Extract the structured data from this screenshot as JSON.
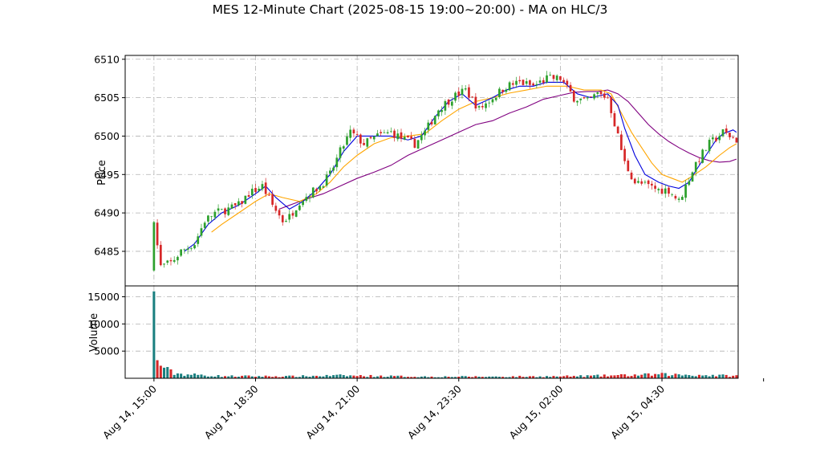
{
  "chart_data": {
    "type": "candlestick",
    "title": "MES 12-Minute Chart (2025-08-15 19:00~20:00) - MA on HLC/3",
    "price_panel": {
      "ylabel": "Price",
      "ylim": [
        6480.5,
        6510.5
      ],
      "yticks": [
        6485,
        6490,
        6495,
        6500,
        6505,
        6510
      ],
      "grid": true
    },
    "volume_panel": {
      "ylabel": "Volume",
      "ylim": [
        0,
        17000
      ],
      "yticks": [
        5000,
        10000,
        15000
      ],
      "grid": true
    },
    "xaxis": {
      "range": [
        -8.5,
        172.5
      ],
      "ticks": [
        {
          "i": 0,
          "label": "Aug 14, 15:00"
        },
        {
          "i": 30,
          "label": "Aug 14, 18:30"
        },
        {
          "i": 60,
          "label": "Aug 14, 21:00"
        },
        {
          "i": 90,
          "label": "Aug 14, 23:30"
        },
        {
          "i": 120,
          "label": "Aug 15, 02:00"
        },
        {
          "i": 150,
          "label": "Aug 15, 04:30"
        },
        {
          "i": 180,
          "label": ""
        }
      ]
    },
    "colors": {
      "up": "#2ca02c",
      "down": "#d62728",
      "vol_up": "#1a7f7f",
      "vol_down": "#d62728",
      "ma_fast": "#0000dd",
      "ma_mid": "#ffa500",
      "ma_slow": "#800080",
      "grid": "#b0b0b0"
    },
    "close_anchors": [
      [
        0,
        6488.5
      ],
      [
        2,
        6483
      ],
      [
        5,
        6483.5
      ],
      [
        8,
        6485
      ],
      [
        12,
        6486
      ],
      [
        15,
        6489
      ],
      [
        18,
        6490
      ],
      [
        22,
        6490.5
      ],
      [
        25,
        6491
      ],
      [
        28,
        6492.5
      ],
      [
        32,
        6493.5
      ],
      [
        35,
        6491
      ],
      [
        38,
        6489
      ],
      [
        40,
        6489.5
      ],
      [
        43,
        6491.5
      ],
      [
        46,
        6492.5
      ],
      [
        49,
        6493.5
      ],
      [
        52,
        6495
      ],
      [
        55,
        6498
      ],
      [
        58,
        6500.5
      ],
      [
        62,
        6499
      ],
      [
        66,
        6500
      ],
      [
        70,
        6500.5
      ],
      [
        74,
        6499.5
      ],
      [
        77,
        6499
      ],
      [
        80,
        6500.5
      ],
      [
        84,
        6503.5
      ],
      [
        88,
        6505
      ],
      [
        92,
        6506
      ],
      [
        96,
        6503.5
      ],
      [
        100,
        6505
      ],
      [
        104,
        6506.5
      ],
      [
        108,
        6507
      ],
      [
        112,
        6506.5
      ],
      [
        116,
        6507.5
      ],
      [
        118,
        6507.5
      ],
      [
        120,
        6507.5
      ],
      [
        124,
        6505
      ],
      [
        128,
        6504.5
      ],
      [
        131,
        6505.5
      ],
      [
        134,
        6505
      ],
      [
        137,
        6500
      ],
      [
        139,
        6496.5
      ],
      [
        142,
        6494
      ],
      [
        146,
        6493.5
      ],
      [
        149,
        6493
      ],
      [
        152,
        6493
      ],
      [
        155,
        6491.5
      ],
      [
        157,
        6493.5
      ],
      [
        160,
        6496.5
      ],
      [
        164,
        6499
      ],
      [
        168,
        6500.5
      ],
      [
        172,
        6499.5
      ],
      [
        180,
        6499.5
      ]
    ],
    "volume_anchors": [
      [
        0,
        16000
      ],
      [
        1,
        3200
      ],
      [
        2,
        2600
      ],
      [
        3,
        2000
      ],
      [
        4,
        1500
      ],
      [
        6,
        900
      ],
      [
        10,
        700
      ],
      [
        20,
        400
      ],
      [
        40,
        350
      ],
      [
        55,
        500
      ],
      [
        80,
        300
      ],
      [
        100,
        300
      ],
      [
        120,
        350
      ],
      [
        135,
        500
      ],
      [
        150,
        700
      ],
      [
        160,
        600
      ],
      [
        172,
        450
      ],
      [
        180,
        450
      ]
    ],
    "ma_fast_anchors": [
      [
        9,
        6485
      ],
      [
        12,
        6486
      ],
      [
        16,
        6488.5
      ],
      [
        20,
        6490
      ],
      [
        25,
        6491
      ],
      [
        30,
        6492.5
      ],
      [
        33,
        6493.5
      ],
      [
        36,
        6492
      ],
      [
        40,
        6490.5
      ],
      [
        44,
        6491.5
      ],
      [
        48,
        6493
      ],
      [
        52,
        6495
      ],
      [
        56,
        6498
      ],
      [
        60,
        6500
      ],
      [
        65,
        6500
      ],
      [
        70,
        6500
      ],
      [
        75,
        6499.5
      ],
      [
        79,
        6500
      ],
      [
        83,
        6502.5
      ],
      [
        87,
        6504.5
      ],
      [
        91,
        6505.5
      ],
      [
        95,
        6504
      ],
      [
        100,
        6505
      ],
      [
        104,
        6506
      ],
      [
        108,
        6506.5
      ],
      [
        112,
        6506.5
      ],
      [
        116,
        6507
      ],
      [
        121,
        6507
      ],
      [
        125,
        6505.5
      ],
      [
        129,
        6505
      ],
      [
        134,
        6505.5
      ],
      [
        137,
        6504
      ],
      [
        139,
        6501
      ],
      [
        142,
        6497.5
      ],
      [
        145,
        6495
      ],
      [
        149,
        6494
      ],
      [
        152,
        6493.5
      ],
      [
        155,
        6493.2
      ],
      [
        158,
        6494
      ],
      [
        160,
        6495.5
      ],
      [
        163,
        6497.5
      ],
      [
        166,
        6499.5
      ],
      [
        168,
        6500.3
      ],
      [
        171,
        6500.8
      ],
      [
        172,
        6500.5
      ]
    ],
    "ma_mid_anchors": [
      [
        17,
        6487.5
      ],
      [
        20,
        6488.5
      ],
      [
        25,
        6490
      ],
      [
        30,
        6491.5
      ],
      [
        34,
        6492.5
      ],
      [
        38,
        6492
      ],
      [
        43,
        6491.5
      ],
      [
        48,
        6492.5
      ],
      [
        52,
        6494
      ],
      [
        56,
        6496
      ],
      [
        60,
        6497.5
      ],
      [
        65,
        6499
      ],
      [
        70,
        6499.8
      ],
      [
        75,
        6500
      ],
      [
        80,
        6500.3
      ],
      [
        85,
        6502
      ],
      [
        90,
        6503.5
      ],
      [
        95,
        6504.5
      ],
      [
        100,
        6505
      ],
      [
        105,
        6505.6
      ],
      [
        110,
        6506
      ],
      [
        116,
        6506.5
      ],
      [
        122,
        6506.5
      ],
      [
        127,
        6506
      ],
      [
        132,
        6506
      ],
      [
        135,
        6505.5
      ],
      [
        138,
        6503
      ],
      [
        141,
        6500.5
      ],
      [
        144,
        6498.5
      ],
      [
        147,
        6496.5
      ],
      [
        150,
        6495
      ],
      [
        153,
        6494.5
      ],
      [
        156,
        6494
      ],
      [
        159,
        6494.8
      ],
      [
        163,
        6496
      ],
      [
        167,
        6497.5
      ],
      [
        170,
        6498.5
      ],
      [
        172,
        6499
      ]
    ],
    "ma_slow_anchors": [
      [
        37,
        6490.5
      ],
      [
        40,
        6491
      ],
      [
        45,
        6491.8
      ],
      [
        50,
        6492.5
      ],
      [
        55,
        6493.5
      ],
      [
        60,
        6494.5
      ],
      [
        65,
        6495.3
      ],
      [
        70,
        6496.2
      ],
      [
        75,
        6497.5
      ],
      [
        80,
        6498.5
      ],
      [
        85,
        6499.5
      ],
      [
        90,
        6500.5
      ],
      [
        95,
        6501.5
      ],
      [
        100,
        6502
      ],
      [
        105,
        6503
      ],
      [
        110,
        6503.8
      ],
      [
        115,
        6504.8
      ],
      [
        120,
        6505.3
      ],
      [
        124,
        6505.7
      ],
      [
        128,
        6505.8
      ],
      [
        131,
        6505.8
      ],
      [
        134,
        6506
      ],
      [
        137,
        6505.5
      ],
      [
        140,
        6504.5
      ],
      [
        143,
        6503
      ],
      [
        146,
        6501.5
      ],
      [
        149,
        6500.3
      ],
      [
        152,
        6499.3
      ],
      [
        155,
        6498.5
      ],
      [
        158,
        6497.8
      ],
      [
        161,
        6497.2
      ],
      [
        164,
        6496.8
      ],
      [
        167,
        6496.6
      ],
      [
        170,
        6496.7
      ],
      [
        172,
        6497
      ]
    ],
    "n_bars": 173,
    "seed": 7
  }
}
